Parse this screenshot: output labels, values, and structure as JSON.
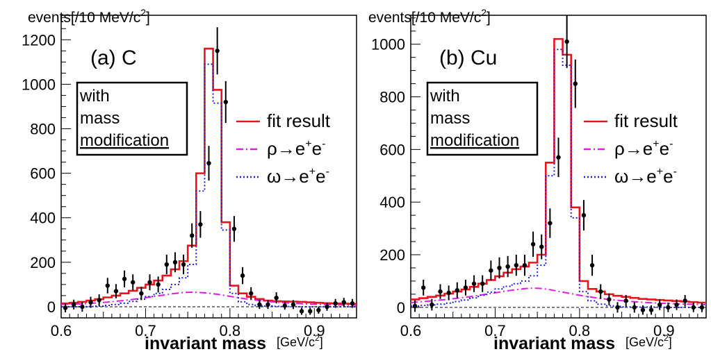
{
  "chart_data": [
    {
      "type": "line",
      "panel_label": "(a) C",
      "ylabel": "events[/10 MeV/c",
      "ylabel_sup": "2",
      "ylabel_close": "]",
      "xlabel": "invariant mass",
      "xunit": "[GeV/c",
      "xunit_sup": "2",
      "xunit_close": "]",
      "xlim": [
        0.6,
        0.95
      ],
      "ylim": [
        -50,
        1310
      ],
      "xticks": [
        0.6,
        0.7,
        0.8,
        0.9
      ],
      "xtick_labels": [
        "0.6",
        "0.7",
        "0.8",
        "0.9"
      ],
      "yticks": [
        0,
        200,
        400,
        600,
        800,
        1000,
        1200
      ],
      "ytick_labels": [
        "0",
        "200",
        "400",
        "600",
        "800",
        "1000",
        "1200"
      ],
      "box_text": [
        "with",
        "mass",
        "modification"
      ],
      "legend": [
        {
          "label": "fit result",
          "color": "#e8141c",
          "style": "solid"
        },
        {
          "label": "ρ→e",
          "sup": "+",
          "label2": "e",
          "sup2": "-",
          "color": "#e619e6",
          "style": "dashdot"
        },
        {
          "label": "ω→e",
          "sup": "+",
          "label2": "e",
          "sup2": "-",
          "color": "#1c1ce6",
          "style": "dotted"
        }
      ],
      "series": [
        {
          "name": "fit result",
          "color": "#e8141c",
          "kind": "step",
          "edges": [
            0.6,
            0.61,
            0.62,
            0.63,
            0.64,
            0.65,
            0.66,
            0.67,
            0.68,
            0.69,
            0.7,
            0.71,
            0.72,
            0.73,
            0.74,
            0.75,
            0.76,
            0.77,
            0.78,
            0.79,
            0.8,
            0.81,
            0.82,
            0.83,
            0.84,
            0.85,
            0.86,
            0.87,
            0.88,
            0.89,
            0.9,
            0.91,
            0.92,
            0.93,
            0.94,
            0.95
          ],
          "values": [
            15,
            18,
            22,
            28,
            34,
            42,
            50,
            60,
            72,
            85,
            100,
            118,
            140,
            168,
            205,
            275,
            600,
            1160,
            975,
            380,
            95,
            60,
            45,
            35,
            28,
            25,
            24,
            23,
            22,
            20,
            18,
            16,
            15,
            14,
            13
          ]
        },
        {
          "name": "ρ→e+e-",
          "color": "#e619e6",
          "kind": "smooth",
          "x": [
            0.6,
            0.63,
            0.66,
            0.69,
            0.72,
            0.75,
            0.78,
            0.81,
            0.84,
            0.87,
            0.9,
            0.93,
            0.95
          ],
          "y": [
            10,
            14,
            22,
            35,
            52,
            68,
            60,
            40,
            25,
            16,
            11,
            8,
            7
          ]
        },
        {
          "name": "ω→e+e-",
          "color": "#1c1ce6",
          "kind": "step",
          "edges": [
            0.6,
            0.61,
            0.62,
            0.63,
            0.64,
            0.65,
            0.66,
            0.67,
            0.68,
            0.69,
            0.7,
            0.71,
            0.72,
            0.73,
            0.74,
            0.75,
            0.76,
            0.77,
            0.78,
            0.79,
            0.8,
            0.81,
            0.82,
            0.83,
            0.84,
            0.85,
            0.86,
            0.87,
            0.88,
            0.89,
            0.9,
            0.91,
            0.92,
            0.93,
            0.94,
            0.95
          ],
          "values": [
            0,
            0,
            0,
            1,
            3,
            6,
            10,
            16,
            24,
            34,
            46,
            60,
            78,
            100,
            130,
            190,
            520,
            1090,
            915,
            345,
            60,
            22,
            10,
            5,
            3,
            2,
            1,
            1,
            0,
            0,
            0,
            0,
            0,
            0,
            0
          ]
        },
        {
          "name": "data",
          "kind": "points",
          "x": [
            0.605,
            0.615,
            0.625,
            0.635,
            0.645,
            0.655,
            0.665,
            0.675,
            0.685,
            0.695,
            0.705,
            0.715,
            0.725,
            0.735,
            0.745,
            0.755,
            0.765,
            0.775,
            0.785,
            0.795,
            0.805,
            0.815,
            0.825,
            0.835,
            0.845,
            0.855,
            0.865,
            0.875,
            0.885,
            0.895,
            0.905,
            0.915,
            0.925,
            0.935,
            0.945
          ],
          "y": [
            -5,
            10,
            0,
            20,
            30,
            95,
            70,
            125,
            110,
            60,
            110,
            100,
            190,
            200,
            190,
            320,
            370,
            645,
            1150,
            920,
            350,
            140,
            60,
            10,
            10,
            40,
            5,
            10,
            -20,
            -20,
            -15,
            0,
            15,
            20,
            15
          ],
          "err": [
            20,
            22,
            22,
            25,
            26,
            35,
            32,
            38,
            36,
            30,
            36,
            36,
            44,
            45,
            44,
            55,
            60,
            78,
            106,
            94,
            58,
            38,
            28,
            20,
            20,
            25,
            18,
            20,
            16,
            16,
            16,
            18,
            20,
            20,
            20
          ]
        }
      ]
    },
    {
      "type": "line",
      "panel_label": "(b) Cu",
      "ylabel": "events[/10 MeV/c",
      "ylabel_sup": "2",
      "ylabel_close": "]",
      "xlabel": "invariant mass",
      "xunit": "[GeV/c",
      "xunit_sup": "2",
      "xunit_close": "]",
      "xlim": [
        0.6,
        0.95
      ],
      "ylim": [
        -40,
        1110
      ],
      "xticks": [
        0.6,
        0.7,
        0.8,
        0.9
      ],
      "xtick_labels": [
        "0.6",
        "0.7",
        "0.8",
        "0.9"
      ],
      "yticks": [
        0,
        200,
        400,
        600,
        800,
        1000
      ],
      "ytick_labels": [
        "0",
        "200",
        "400",
        "600",
        "800",
        "1000"
      ],
      "box_text": [
        "with",
        "mass",
        "modification"
      ],
      "legend": [
        {
          "label": "fit result",
          "color": "#e8141c",
          "style": "solid"
        },
        {
          "label": "ρ→e",
          "sup": "+",
          "label2": "e",
          "sup2": "-",
          "color": "#e619e6",
          "style": "dashdot"
        },
        {
          "label": "ω→e",
          "sup": "+",
          "label2": "e",
          "sup2": "-",
          "color": "#1c1ce6",
          "style": "dotted"
        }
      ],
      "series": [
        {
          "name": "fit result",
          "color": "#e8141c",
          "kind": "step",
          "edges": [
            0.6,
            0.61,
            0.62,
            0.63,
            0.64,
            0.65,
            0.66,
            0.67,
            0.68,
            0.69,
            0.7,
            0.71,
            0.72,
            0.73,
            0.74,
            0.75,
            0.76,
            0.77,
            0.78,
            0.79,
            0.8,
            0.81,
            0.82,
            0.83,
            0.84,
            0.85,
            0.86,
            0.87,
            0.88,
            0.89,
            0.9,
            0.91,
            0.92,
            0.93,
            0.94,
            0.95
          ],
          "values": [
            30,
            35,
            40,
            45,
            52,
            60,
            68,
            78,
            90,
            104,
            118,
            132,
            145,
            155,
            170,
            200,
            550,
            1020,
            960,
            380,
            100,
            70,
            60,
            50,
            44,
            40,
            36,
            32,
            30,
            28,
            26,
            24,
            22,
            20,
            18
          ]
        },
        {
          "name": "ρ→e+e-",
          "color": "#e619e6",
          "kind": "smooth",
          "x": [
            0.6,
            0.63,
            0.66,
            0.69,
            0.72,
            0.75,
            0.78,
            0.81,
            0.84,
            0.87,
            0.9,
            0.93,
            0.95
          ],
          "y": [
            18,
            26,
            36,
            50,
            66,
            76,
            58,
            40,
            28,
            20,
            15,
            12,
            10
          ]
        },
        {
          "name": "ω→e+e-",
          "color": "#1c1ce6",
          "kind": "step",
          "edges": [
            0.6,
            0.61,
            0.62,
            0.63,
            0.64,
            0.65,
            0.66,
            0.67,
            0.68,
            0.69,
            0.7,
            0.71,
            0.72,
            0.73,
            0.74,
            0.75,
            0.76,
            0.77,
            0.78,
            0.79,
            0.8,
            0.81,
            0.82,
            0.83,
            0.84,
            0.85,
            0.86,
            0.87,
            0.88,
            0.89,
            0.9,
            0.91,
            0.92,
            0.93,
            0.94,
            0.95
          ],
          "values": [
            5,
            7,
            9,
            12,
            16,
            22,
            28,
            36,
            46,
            58,
            70,
            80,
            90,
            100,
            120,
            160,
            500,
            980,
            920,
            340,
            60,
            25,
            12,
            6,
            4,
            2,
            2,
            1,
            1,
            1,
            0,
            0,
            0,
            0,
            0
          ]
        },
        {
          "name": "data",
          "kind": "points",
          "x": [
            0.605,
            0.615,
            0.625,
            0.635,
            0.645,
            0.655,
            0.665,
            0.675,
            0.685,
            0.695,
            0.705,
            0.715,
            0.725,
            0.735,
            0.745,
            0.755,
            0.765,
            0.775,
            0.785,
            0.795,
            0.805,
            0.815,
            0.825,
            0.835,
            0.845,
            0.855,
            0.865,
            0.875,
            0.885,
            0.895,
            0.905,
            0.915,
            0.925,
            0.935,
            0.945
          ],
          "y": [
            5,
            75,
            10,
            60,
            55,
            65,
            75,
            90,
            90,
            140,
            150,
            155,
            160,
            160,
            240,
            230,
            320,
            570,
            1010,
            850,
            350,
            160,
            60,
            30,
            0,
            25,
            0,
            -10,
            -10,
            10,
            0,
            10,
            25,
            0,
            0
          ],
          "err": [
            22,
            30,
            22,
            28,
            28,
            30,
            30,
            32,
            32,
            38,
            40,
            40,
            40,
            40,
            48,
            47,
            56,
            75,
            100,
            92,
            58,
            40,
            28,
            22,
            20,
            22,
            20,
            18,
            18,
            20,
            18,
            20,
            22,
            18,
            18
          ]
        }
      ]
    }
  ]
}
